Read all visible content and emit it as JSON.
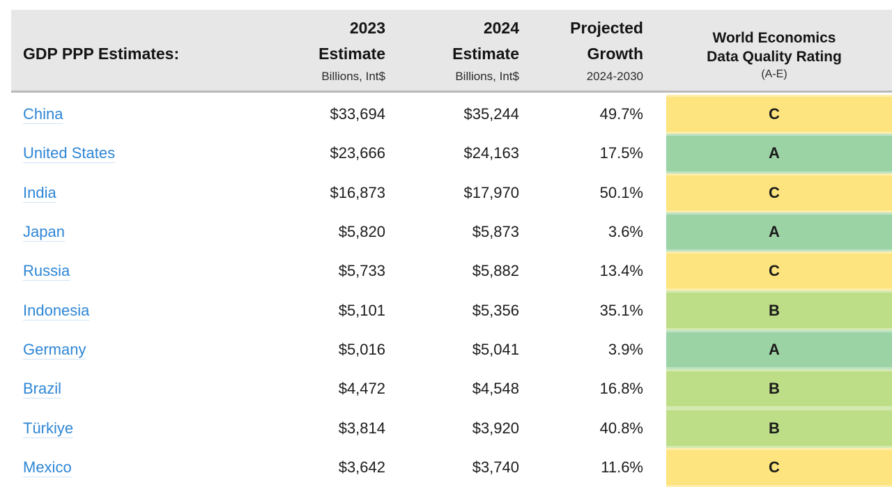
{
  "colors": {
    "header_bg": "#e7e7e7",
    "header_border": "#b9b9b9",
    "link": "#2e86d5",
    "text_dark": "#1b1b1b",
    "rating_A": "#9cd3a5",
    "rating_B": "#bdde87",
    "rating_C": "#fde47e"
  },
  "header": {
    "title": "GDP PPP Estimates:",
    "col_2023": {
      "line1": "2023",
      "line2": "Estimate",
      "sub": "Billions, Int$"
    },
    "col_2024": {
      "line1": "2024",
      "line2": "Estimate",
      "sub": "Billions, Int$"
    },
    "col_growth": {
      "line1": "Projected",
      "line2": "Growth",
      "sub": "2024-2030"
    },
    "col_rating": {
      "line1": "World Economics",
      "line2": "Data Quality Rating",
      "sub": "(A-E)"
    }
  },
  "rows": [
    {
      "country": "China",
      "est_2023": "$33,694",
      "est_2024": "$35,244",
      "growth": "49.7%",
      "rating": "C"
    },
    {
      "country": "United States",
      "est_2023": "$23,666",
      "est_2024": "$24,163",
      "growth": "17.5%",
      "rating": "A"
    },
    {
      "country": "India",
      "est_2023": "$16,873",
      "est_2024": "$17,970",
      "growth": "50.1%",
      "rating": "C"
    },
    {
      "country": "Japan",
      "est_2023": "$5,820",
      "est_2024": "$5,873",
      "growth": "3.6%",
      "rating": "A"
    },
    {
      "country": "Russia",
      "est_2023": "$5,733",
      "est_2024": "$5,882",
      "growth": "13.4%",
      "rating": "C"
    },
    {
      "country": "Indonesia",
      "est_2023": "$5,101",
      "est_2024": "$5,356",
      "growth": "35.1%",
      "rating": "B"
    },
    {
      "country": "Germany",
      "est_2023": "$5,016",
      "est_2024": "$5,041",
      "growth": "3.9%",
      "rating": "A"
    },
    {
      "country": "Brazil",
      "est_2023": "$4,472",
      "est_2024": "$4,548",
      "growth": "16.8%",
      "rating": "B"
    },
    {
      "country": "Türkiye",
      "est_2023": "$3,814",
      "est_2024": "$3,920",
      "growth": "40.8%",
      "rating": "B"
    },
    {
      "country": "Mexico",
      "est_2023": "$3,642",
      "est_2024": "$3,740",
      "growth": "11.6%",
      "rating": "C"
    }
  ]
}
